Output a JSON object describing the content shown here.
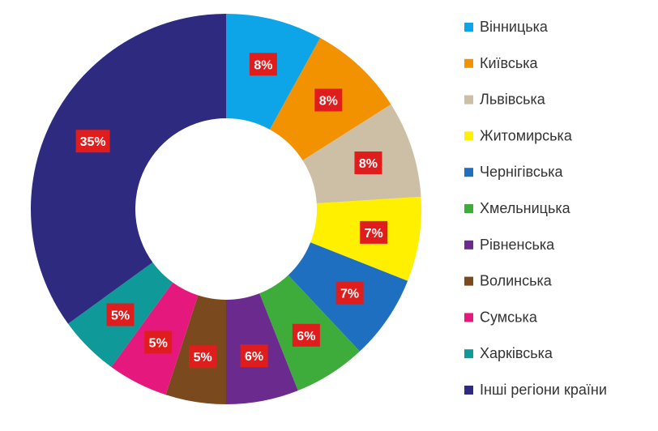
{
  "chart_data": {
    "type": "pie",
    "donut": true,
    "legend_position": "right",
    "categories": [
      "Вінницька",
      "Київська",
      "Львівська",
      "Житомирська",
      "Чернігівська",
      "Хмельницька",
      "Рівненська",
      "Волинська",
      "Сумська",
      "Харківська",
      "Інші регіони країни"
    ],
    "values": [
      8,
      8,
      8,
      7,
      7,
      6,
      6,
      5,
      5,
      5,
      35
    ],
    "labels": [
      "8%",
      "8%",
      "8%",
      "7%",
      "7%",
      "6%",
      "6%",
      "5%",
      "5%",
      "5%",
      "35%"
    ],
    "colors": [
      "#0ea5e8",
      "#f39200",
      "#cdbfa6",
      "#fff000",
      "#1f6fc0",
      "#3dac3a",
      "#6b2a8e",
      "#7a4a1e",
      "#e5197d",
      "#0f9a99",
      "#2e2a80"
    ],
    "label_color": "#e01d1d"
  }
}
